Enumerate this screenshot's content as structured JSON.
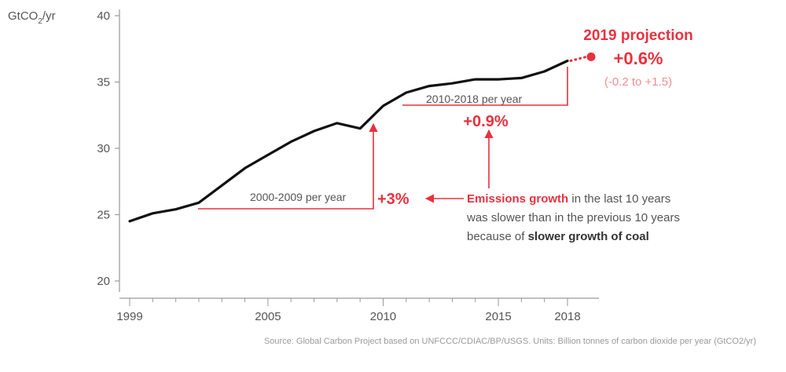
{
  "chart_data": {
    "type": "line",
    "ylabel": "GtCO",
    "ylabel_sub": "2",
    "ylabel_tail": "/yr",
    "ylim": [
      20,
      40
    ],
    "yticks": [
      20,
      25,
      30,
      35,
      40
    ],
    "xlim": [
      1999,
      2019.5
    ],
    "xticks": [
      1999,
      2005,
      2010,
      2015,
      2018
    ],
    "grid": false,
    "series": [
      {
        "x": [
          1999,
          2000,
          2001,
          2002,
          2003,
          2004,
          2005,
          2006,
          2007,
          2008,
          2009,
          2010,
          2011,
          2012,
          2013,
          2014,
          2015,
          2016,
          2017,
          2018
        ],
        "values": [
          24.5,
          25.1,
          25.4,
          25.9,
          27.2,
          28.5,
          29.5,
          30.5,
          31.3,
          31.9,
          31.5,
          33.2,
          34.2,
          34.7,
          34.9,
          35.2,
          35.2,
          35.3,
          35.8,
          36.6
        ]
      }
    ],
    "projection": {
      "x": 2019,
      "value": 36.9
    },
    "annotations": {
      "projection_title": "2019 projection",
      "projection_value": "+0.6%",
      "projection_range": "(-0.2 to +1.5)",
      "period2_label": "2010-2018 per year",
      "period2_value": "+0.9%",
      "period1_label": "2000-2009 per year",
      "period1_value": "+3%",
      "explain_red": "Emissions growth",
      "explain_1": " in the last 10 years",
      "explain_2": "was slower than in the previous 10 years",
      "explain_3": "because of ",
      "explain_bold": "slower growth of coal"
    },
    "source": "Source: Global Carbon Project based on UNFCCC/CDIAC/BP/USGS. Units: Billion tonnes of carbon dioxide per year (GtCO2/yr)"
  }
}
